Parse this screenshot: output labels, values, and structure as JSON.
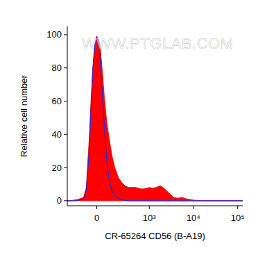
{
  "chart_data": {
    "type": "area",
    "x_label": "CR-65264 CD56 (B-A19)",
    "y_label": "Relative cell number",
    "annotations": [
      "WWW.PTGLAB.COM"
    ],
    "x": [
      -290,
      -249,
      -200,
      -150,
      -97,
      -75,
      -53,
      -40,
      -28,
      -14,
      0,
      12,
      24,
      38,
      53,
      70,
      91,
      115,
      141,
      180,
      221,
      270,
      330,
      400,
      482,
      580,
      697,
      850,
      1005,
      1200,
      1438,
      1750,
      2060,
      2700,
      3540,
      4400,
      5440,
      7270,
      10430,
      20000,
      130000
    ],
    "series": [
      {
        "type": "area",
        "color": "#ff0000",
        "values": [
          0,
          0,
          0.3,
          0.8,
          2,
          8,
          37,
          60,
          79,
          93,
          99,
          97,
          92,
          78,
          62,
          48,
          37,
          27,
          20,
          14,
          11,
          9,
          8,
          8,
          8,
          7.5,
          7,
          7.5,
          8,
          7.5,
          8,
          9,
          8,
          5,
          2,
          1.5,
          2,
          1,
          0.3,
          0,
          0
        ]
      },
      {
        "type": "line",
        "color": "#2a2ad0",
        "values": [
          0,
          0,
          0,
          0.2,
          1,
          6,
          30,
          55,
          78,
          94,
          99,
          95,
          85,
          65,
          45,
          25,
          12,
          6,
          3,
          1.5,
          0.5,
          0.2,
          0,
          0,
          0,
          0,
          0,
          0,
          0,
          0,
          0,
          0,
          0,
          0,
          0,
          0,
          0,
          0,
          0,
          0,
          0
        ]
      }
    ],
    "xlim": [
      -290,
      130000
    ],
    "xticks": [
      0,
      {
        "value": 1000,
        "label": "10³"
      },
      {
        "value": 10000,
        "label": "10⁴"
      },
      {
        "value": 100000,
        "label": "10⁵"
      }
    ],
    "ylim": [
      -3,
      105
    ],
    "yticks": [
      0,
      20,
      40,
      60,
      80,
      100
    ],
    "grid": false
  }
}
